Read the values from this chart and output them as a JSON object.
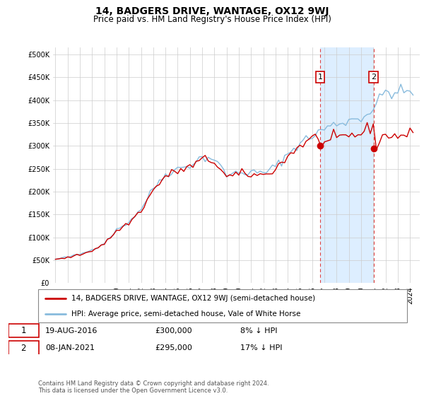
{
  "title": "14, BADGERS DRIVE, WANTAGE, OX12 9WJ",
  "subtitle": "Price paid vs. HM Land Registry's House Price Index (HPI)",
  "ytick_vals": [
    0,
    50000,
    100000,
    150000,
    200000,
    250000,
    300000,
    350000,
    400000,
    450000,
    500000
  ],
  "ylim": [
    0,
    515000
  ],
  "xlim_start": 1994.8,
  "xlim_end": 2024.8,
  "marker1_x": 2016.64,
  "marker1_y": 300000,
  "marker2_x": 2021.03,
  "marker2_y": 295000,
  "legend_property_label": "14, BADGERS DRIVE, WANTAGE, OX12 9WJ (semi-detached house)",
  "legend_hpi_label": "HPI: Average price, semi-detached house, Vale of White Horse",
  "property_color": "#cc0000",
  "hpi_color": "#88bbdd",
  "footer": "Contains HM Land Registry data © Crown copyright and database right 2024.\nThis data is licensed under the Open Government Licence v3.0.",
  "grid_color": "#cccccc",
  "shaded_color": "#ddeeff",
  "shaded_region1_start": 2016.64,
  "shaded_region1_end": 2021.03
}
